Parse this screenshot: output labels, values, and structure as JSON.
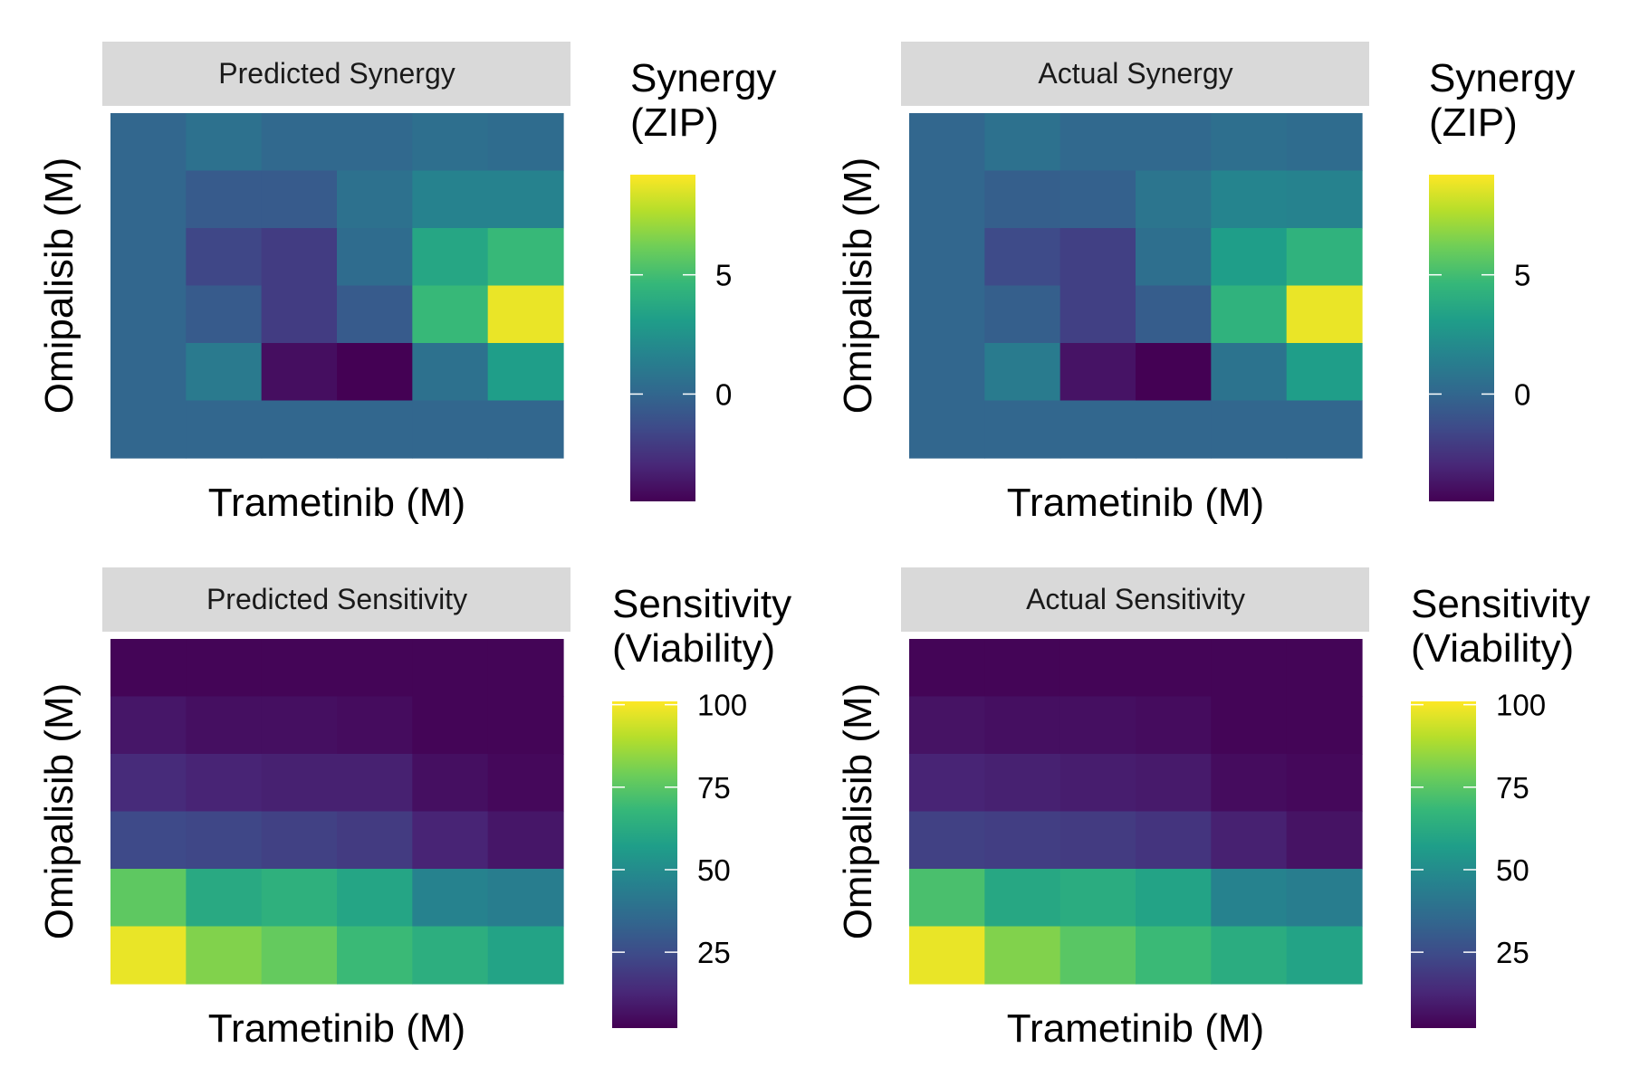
{
  "chart_data": [
    {
      "type": "heatmap",
      "title": "Predicted Synergy",
      "xlabel": "Trametinib (M)",
      "ylabel": "Omipalisib (M)",
      "colorbar": {
        "title": [
          "Synergy",
          "(ZIP)"
        ],
        "ticks": [
          0,
          5
        ],
        "range": [
          -4.5,
          9.2
        ]
      },
      "rows": [
        [
          0.0,
          0.6,
          0.1,
          0.1,
          0.5,
          0.3
        ],
        [
          0.0,
          -0.6,
          -0.6,
          0.6,
          1.6,
          1.6
        ],
        [
          0.0,
          -1.6,
          -2.1,
          0.3,
          3.6,
          4.7
        ],
        [
          0.0,
          -0.6,
          -2.1,
          -0.6,
          4.7,
          8.8
        ],
        [
          0.0,
          1.1,
          -4.0,
          -4.5,
          0.6,
          3.1
        ],
        [
          0.0,
          0.0,
          0.0,
          0.0,
          0.0,
          0.0
        ]
      ]
    },
    {
      "type": "heatmap",
      "title": "Actual Synergy",
      "xlabel": "Trametinib (M)",
      "ylabel": "Omipalisib (M)",
      "colorbar": {
        "title": [
          "Synergy",
          "(ZIP)"
        ],
        "ticks": [
          0,
          5
        ],
        "range": [
          -4.5,
          9.2
        ]
      },
      "rows": [
        [
          0.0,
          0.6,
          0.1,
          0.1,
          0.5,
          0.3
        ],
        [
          0.0,
          -0.4,
          -0.3,
          0.8,
          1.7,
          1.6
        ],
        [
          0.0,
          -1.4,
          -1.9,
          0.5,
          3.1,
          4.3
        ],
        [
          0.0,
          -0.4,
          -1.9,
          -0.5,
          4.3,
          8.8
        ],
        [
          0.0,
          1.2,
          -3.8,
          -4.5,
          0.7,
          3.1
        ],
        [
          0.0,
          0.0,
          0.0,
          0.0,
          0.0,
          0.0
        ]
      ]
    },
    {
      "type": "heatmap",
      "title": "Predicted Sensitivity",
      "xlabel": "Trametinib (M)",
      "ylabel": "Omipalisib (M)",
      "colorbar": {
        "title": [
          "Sensitivity",
          "(Viability)"
        ],
        "ticks": [
          25,
          50,
          75,
          100
        ],
        "range": [
          2,
          101
        ]
      },
      "rows": [
        [
          3,
          3,
          3,
          3,
          3,
          3
        ],
        [
          8,
          6,
          6,
          5,
          3,
          3
        ],
        [
          14,
          12,
          11,
          11,
          6,
          4
        ],
        [
          24,
          23,
          21,
          19,
          12,
          8
        ],
        [
          76,
          62,
          65,
          60,
          46,
          44
        ],
        [
          98,
          82,
          77,
          69,
          64,
          59
        ]
      ]
    },
    {
      "type": "heatmap",
      "title": "Actual Sensitivity",
      "xlabel": "Trametinib (M)",
      "ylabel": "Omipalisib (M)",
      "colorbar": {
        "title": [
          "Sensitivity",
          "(Viability)"
        ],
        "ticks": [
          25,
          50,
          75,
          100
        ],
        "range": [
          2,
          101
        ]
      },
      "rows": [
        [
          3,
          3,
          3,
          3,
          3,
          3
        ],
        [
          7,
          6,
          6,
          5,
          3,
          3
        ],
        [
          12,
          11,
          10,
          9,
          5,
          4
        ],
        [
          21,
          20,
          19,
          17,
          11,
          7
        ],
        [
          72,
          61,
          63,
          59,
          46,
          44
        ],
        [
          98,
          82,
          75,
          69,
          63,
          59
        ]
      ]
    }
  ],
  "colors": {
    "strip_bg": "#d9d9d9",
    "viridis": [
      "#440154",
      "#482878",
      "#3e4a89",
      "#31688e",
      "#26828e",
      "#1f9e89",
      "#35b779",
      "#6ece58",
      "#b5de2b",
      "#fde725"
    ]
  }
}
